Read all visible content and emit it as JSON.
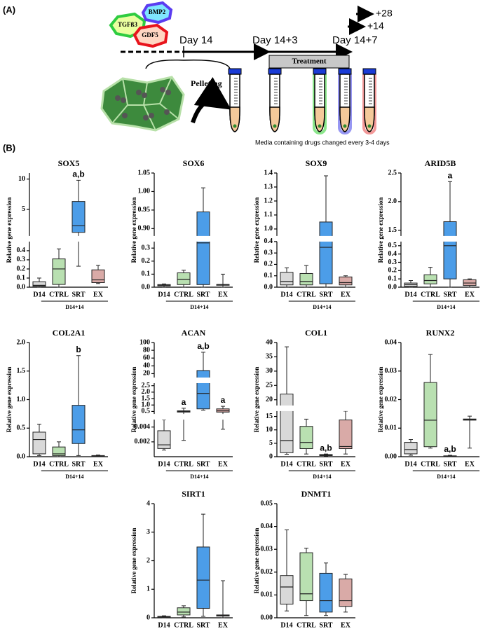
{
  "panel_a": {
    "label": "(A)",
    "factors": [
      "TGFß3",
      "BMP2",
      "GDF5"
    ],
    "timepoints": [
      "Day 14",
      "Day 14+3",
      "Day 14+7"
    ],
    "treatment": "Treatment",
    "extensions": [
      "+28",
      "+14"
    ],
    "pelleting": "Pelleting",
    "note": "Media containing drugs changed every 3-4 days"
  },
  "panel_b": {
    "label": "(B)"
  },
  "chart_data": [
    {
      "type": "box",
      "title": "SOX5",
      "y_label": "Relative gene expression",
      "categories": [
        "D14",
        "CTRL",
        "SRT",
        "EX"
      ],
      "group_label": "D14+14",
      "colors": [
        "#d9d9d9",
        "#b9e0b1",
        "#4c9de8",
        "#d9aaa7"
      ],
      "y_axis_segments": [
        {
          "ylim": [
            0,
            0.5
          ],
          "yticks": [
            {
              "value": 0,
              "label": "0.0"
            },
            0.1,
            0.2,
            0.3,
            0.4
          ]
        },
        {
          "ylim": [
            0.6,
            11
          ],
          "yticks": [
            5,
            10
          ]
        }
      ],
      "boxes": [
        {
          "min": 0,
          "q1": 0.01,
          "median": 0.02,
          "q3": 0.06,
          "max": 0.1
        },
        {
          "min": 0,
          "q1": 0.03,
          "median": 0.2,
          "q3": 0.31,
          "max": 0.42
        },
        {
          "min": 0.23,
          "q1": 1.2,
          "median": 2.3,
          "q3": 6.3,
          "max": 9.8
        },
        {
          "min": 0.04,
          "q1": 0.05,
          "median": 0.08,
          "q3": 0.19,
          "max": 0.24
        }
      ],
      "annotations": [
        null,
        null,
        "a,b",
        null
      ]
    },
    {
      "type": "box",
      "title": "SOX6",
      "y_label": "Relative gene expression",
      "categories": [
        "D14",
        "CTRL",
        "SRT",
        "EX"
      ],
      "group_label": "D14+14",
      "colors": [
        "#d9d9d9",
        "#b9e0b1",
        "#4c9de8",
        "#d9aaa7"
      ],
      "y_axis_segments": [
        {
          "ylim": [
            0,
            0.35
          ],
          "yticks": [
            {
              "value": 0,
              "label": "0.0"
            },
            0.1,
            0.2,
            0.3
          ]
        },
        {
          "ylim": [
            0.88,
            1.05
          ],
          "yticks": [
            {
              "value": 0.9,
              "label": "0.90"
            },
            0.95,
            {
              "value": 1,
              "label": "1.00"
            },
            1.05
          ]
        }
      ],
      "boxes": [
        {
          "min": 0,
          "q1": 0.01,
          "median": 0.015,
          "q3": 0.02,
          "max": 0.025
        },
        {
          "min": 0,
          "q1": 0.02,
          "median": 0.06,
          "q3": 0.11,
          "max": 0.13
        },
        {
          "min": 0,
          "q1": 0.02,
          "median": 0.34,
          "q3": 0.945,
          "max": 1.01
        },
        {
          "min": 0,
          "q1": 0.02,
          "median": 0.02,
          "q3": 0.02,
          "max": 0.1
        }
      ],
      "annotations": [
        null,
        null,
        null,
        null
      ]
    },
    {
      "type": "box",
      "title": "SOX9",
      "y_label": "Relative gene expression",
      "categories": [
        "D14",
        "CTRL",
        "SRT",
        "EX"
      ],
      "group_label": "D14+14",
      "colors": [
        "#d9d9d9",
        "#b9e0b1",
        "#4c9de8",
        "#d9aaa7"
      ],
      "y_axis_segments": [
        {
          "ylim": [
            0,
            0.4
          ],
          "yticks": [
            {
              "value": 0,
              "label": "0.0"
            },
            0.1,
            0.2,
            0.3,
            0.4
          ]
        },
        {
          "ylim": [
            0.95,
            1.4
          ],
          "yticks": [
            {
              "value": 1,
              "label": "1.0"
            },
            1.1,
            1.2,
            1.3,
            1.4
          ]
        }
      ],
      "boxes": [
        {
          "min": 0,
          "q1": 0.02,
          "median": 0.05,
          "q3": 0.13,
          "max": 0.17
        },
        {
          "min": 0,
          "q1": 0.02,
          "median": 0.05,
          "q3": 0.12,
          "max": 0.19
        },
        {
          "min": 0,
          "q1": 0.03,
          "median": 0.35,
          "q3": 1.05,
          "max": 1.38
        },
        {
          "min": 0,
          "q1": 0.02,
          "median": 0.04,
          "q3": 0.09,
          "max": 0.1
        }
      ],
      "annotations": [
        null,
        null,
        null,
        null
      ]
    },
    {
      "type": "box",
      "title": "ARID5B",
      "y_label": "Relative gene expression",
      "categories": [
        "D14",
        "CTRL",
        "SRT",
        "EX"
      ],
      "group_label": "D14+14",
      "colors": [
        "#d9d9d9",
        "#b9e0b1",
        "#4c9de8",
        "#d9aaa7"
      ],
      "y_axis_segments": [
        {
          "ylim": [
            0,
            0.55
          ],
          "yticks": [
            {
              "value": 0,
              "label": "0.0"
            },
            0.1,
            0.2,
            0.3,
            0.4,
            0.5
          ]
        },
        {
          "ylim": [
            1.4,
            2.5
          ],
          "yticks": [
            1.5,
            {
              "value": 2,
              "label": "2.0"
            },
            2.5
          ]
        }
      ],
      "boxes": [
        {
          "min": 0,
          "q1": 0.01,
          "median": 0.03,
          "q3": 0.05,
          "max": 0.08
        },
        {
          "min": 0,
          "q1": 0.04,
          "median": 0.08,
          "q3": 0.15,
          "max": 0.24
        },
        {
          "min": 0,
          "q1": 0.1,
          "median": 0.5,
          "q3": 1.65,
          "max": 2.35
        },
        {
          "min": 0,
          "q1": 0.02,
          "median": 0.05,
          "q3": 0.09,
          "max": 0.1
        }
      ],
      "annotations": [
        null,
        null,
        "a",
        null
      ]
    },
    {
      "type": "box",
      "title": "COL2A1",
      "y_label": "Relative gene expression",
      "categories": [
        "D14",
        "CTRL",
        "SRT",
        "EX"
      ],
      "group_label": "D14+14",
      "colors": [
        "#d9d9d9",
        "#b9e0b1",
        "#4c9de8",
        "#d9aaa7"
      ],
      "y_axis_segments": [
        {
          "ylim": [
            0,
            2
          ],
          "yticks": [
            {
              "value": 0,
              "label": "0.0"
            },
            0.5,
            {
              "value": 1,
              "label": "1.0"
            },
            1.5,
            {
              "value": 2,
              "label": "2.0"
            }
          ]
        }
      ],
      "boxes": [
        {
          "min": 0.02,
          "q1": 0.05,
          "median": 0.3,
          "q3": 0.43,
          "max": 0.57
        },
        {
          "min": 0,
          "q1": 0.02,
          "median": 0.05,
          "q3": 0.17,
          "max": 0.26
        },
        {
          "min": 0.02,
          "q1": 0.23,
          "median": 0.47,
          "q3": 0.9,
          "max": 1.77
        },
        {
          "min": 0,
          "q1": 0,
          "median": 0.01,
          "q3": 0.02,
          "max": 0.03
        }
      ],
      "annotations": [
        null,
        null,
        "b",
        null
      ]
    },
    {
      "type": "box",
      "title": "ACAN",
      "y_label": "Relative gene expression",
      "categories": [
        "D14",
        "CTRL",
        "SRT",
        "EX"
      ],
      "group_label": "D14+14",
      "colors": [
        "#d9d9d9",
        "#2f6b3a",
        "#4c9de8",
        "#d9aaa7"
      ],
      "y_axis_segments": [
        {
          "ylim": [
            0,
            0.005
          ],
          "yticks": [
            0.002,
            0.004
          ]
        },
        {
          "ylim": [
            0.3,
            2.7
          ],
          "yticks": [
            0.5,
            {
              "value": 1,
              "label": "1.0"
            },
            1.5,
            {
              "value": 2,
              "label": "2.0"
            },
            2.5
          ]
        },
        {
          "ylim": [
            10,
            100
          ],
          "yticks": [
            20,
            40,
            60,
            80,
            100
          ]
        }
      ],
      "boxes": [
        {
          "min": 0.0009,
          "q1": 0.0011,
          "median": 0.0016,
          "q3": 0.0035,
          "max": 0.005
        },
        {
          "min": 0.0022,
          "q1": 0.45,
          "median": 0.5,
          "q3": 0.55,
          "max": 0.75
        },
        {
          "min": 0.6,
          "q1": 0.7,
          "median": 1.9,
          "q3": 28,
          "max": 75
        },
        {
          "min": 0.0037,
          "q1": 0.45,
          "median": 0.55,
          "q3": 0.7,
          "max": 0.9
        }
      ],
      "annotations": [
        null,
        "a",
        "a,b",
        "a"
      ]
    },
    {
      "type": "box",
      "title": "COL1",
      "y_label": "Relative gene expression",
      "categories": [
        "D14",
        "CTRL",
        "SRT",
        "EX"
      ],
      "group_label": "D14+14",
      "colors": [
        "#d9d9d9",
        "#b9e0b1",
        "#4c9de8",
        "#d9aaa7"
      ],
      "y_axis_segments": [
        {
          "ylim": [
            0,
            17
          ],
          "yticks": [
            0,
            5,
            10,
            15
          ]
        },
        {
          "ylim": [
            18,
            40
          ],
          "yticks": [
            20,
            25,
            30,
            35,
            40
          ]
        }
      ],
      "boxes": [
        {
          "min": 0.9,
          "q1": 1.5,
          "median": 6,
          "q3": 22,
          "max": 38.5
        },
        {
          "min": 1,
          "q1": 3,
          "median": 5.3,
          "q3": 11.3,
          "max": 14
        },
        {
          "min": 0.2,
          "q1": 0.4,
          "median": 0.6,
          "q3": 0.8,
          "max": 1
        },
        {
          "min": 1,
          "q1": 3,
          "median": 3.8,
          "q3": 13.7,
          "max": 17
        }
      ],
      "annotations": [
        null,
        null,
        "a,b",
        null
      ]
    },
    {
      "type": "box",
      "title": "RUNX2",
      "y_label": "Relative gene expression",
      "categories": [
        "D14",
        "CTRL",
        "SRT",
        "EX"
      ],
      "group_label": "D14+14",
      "colors": [
        "#d9d9d9",
        "#b9e0b1",
        "#4c9de8",
        "#d9aaa7"
      ],
      "y_axis_segments": [
        {
          "ylim": [
            0,
            0.04
          ],
          "yticks": [
            {
              "value": 0,
              "label": "0.00"
            },
            0.01,
            0.02,
            0.03,
            0.04
          ]
        }
      ],
      "boxes": [
        {
          "min": 0.0005,
          "q1": 0.001,
          "median": 0.0025,
          "q3": 0.005,
          "max": 0.006
        },
        {
          "min": 0.003,
          "q1": 0.0035,
          "median": 0.0128,
          "q3": 0.026,
          "max": 0.0358
        },
        {
          "min": 0,
          "q1": 0.0001,
          "median": 0.0002,
          "q3": 0.0003,
          "max": 0.0005
        },
        {
          "min": 0.003,
          "q1": 0.0128,
          "median": 0.013,
          "q3": 0.0132,
          "max": 0.0142
        }
      ],
      "annotations": [
        null,
        null,
        "a,b",
        null
      ]
    },
    {
      "type": "box",
      "title": "SIRT1",
      "y_label": "Relative gene expression",
      "categories": [
        "D14",
        "CTRL",
        "SRT",
        "EX"
      ],
      "group_label": "D14+14",
      "colors": [
        "#d9d9d9",
        "#b9e0b1",
        "#4c9de8",
        "#d9aaa7"
      ],
      "y_axis_segments": [
        {
          "ylim": [
            0,
            4
          ],
          "yticks": [
            0,
            1,
            2,
            3,
            4
          ]
        }
      ],
      "boxes": [
        {
          "min": 0,
          "q1": 0.01,
          "median": 0.03,
          "q3": 0.05,
          "max": 0.07
        },
        {
          "min": 0.03,
          "q1": 0.1,
          "median": 0.2,
          "q3": 0.35,
          "max": 0.42
        },
        {
          "min": 0.05,
          "q1": 0.33,
          "median": 1.32,
          "q3": 2.48,
          "max": 3.63
        },
        {
          "min": 0,
          "q1": 0.06,
          "median": 0.08,
          "q3": 0.1,
          "max": 1.3
        }
      ],
      "annotations": [
        null,
        null,
        null,
        null
      ]
    },
    {
      "type": "box",
      "title": "DNMT1",
      "y_label": "Relative gene expression",
      "categories": [
        "D14",
        "CTRL",
        "SRT",
        "EX"
      ],
      "group_label": "D14+14",
      "colors": [
        "#d9d9d9",
        "#b9e0b1",
        "#4c9de8",
        "#d9aaa7"
      ],
      "y_axis_segments": [
        {
          "ylim": [
            0,
            0.05
          ],
          "yticks": [
            {
              "value": 0,
              "label": "0.00"
            },
            0.01,
            0.02,
            0.03,
            0.04,
            0.05
          ]
        }
      ],
      "boxes": [
        {
          "min": 0.003,
          "q1": 0.006,
          "median": 0.0135,
          "q3": 0.0185,
          "max": 0.0385
        },
        {
          "min": 0.001,
          "q1": 0.0075,
          "median": 0.0105,
          "q3": 0.0285,
          "max": 0.0305
        },
        {
          "min": 0.001,
          "q1": 0.0025,
          "median": 0.0075,
          "q3": 0.0195,
          "max": 0.024
        },
        {
          "min": 0.0025,
          "q1": 0.005,
          "median": 0.0075,
          "q3": 0.017,
          "max": 0.019
        }
      ],
      "annotations": [
        null,
        null,
        null,
        null
      ]
    }
  ]
}
